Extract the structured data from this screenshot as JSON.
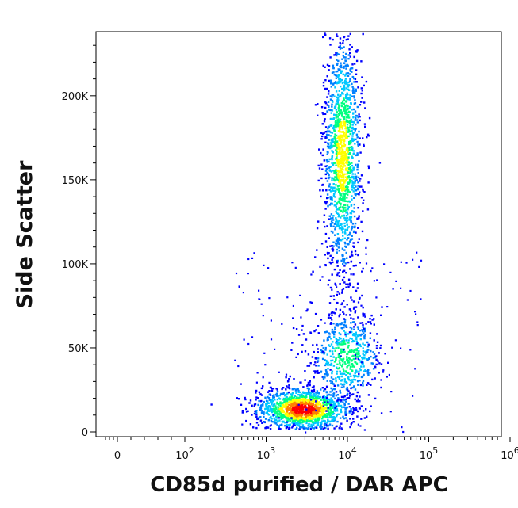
{
  "chart_data": {
    "type": "scatter",
    "plot_style": "density (pseudocolor) flow cytometry dot plot",
    "title": "",
    "xlabel": "CD85d purified / DAR APC",
    "ylabel": "Side Scatter",
    "x_scale": "biexponential (log with linear region near 0)",
    "y_scale": "linear",
    "ylim": [
      0,
      240000
    ],
    "x_ticks": [
      {
        "value": 0,
        "base": "0",
        "exp": ""
      },
      {
        "value": 100,
        "base": "10",
        "exp": "2"
      },
      {
        "value": 1000,
        "base": "10",
        "exp": "3"
      },
      {
        "value": 10000,
        "base": "10",
        "exp": "4"
      },
      {
        "value": 100000,
        "base": "10",
        "exp": "5"
      },
      {
        "value": 1000000,
        "base": "10",
        "exp": "6"
      }
    ],
    "y_ticks": [
      {
        "value": 0,
        "label": "0"
      },
      {
        "value": 50000,
        "label": "50K"
      },
      {
        "value": 100000,
        "label": "100K"
      },
      {
        "value": 150000,
        "label": "150K"
      },
      {
        "value": 200000,
        "label": "200K"
      }
    ],
    "populations": [
      {
        "name": "",
        "x_center": 2800,
        "y_center": 14000,
        "x_spread_decades": 0.28,
        "y_spread": 6000,
        "density": "highest"
      },
      {
        "name": "",
        "x_center": 8500,
        "y_center": 165000,
        "x_spread_decades": 0.12,
        "y_spread": 38000,
        "density": "high"
      },
      {
        "name": "",
        "x_center": 9500,
        "y_center": 45000,
        "x_spread_decades": 0.22,
        "y_spread": 14000,
        "density": "medium"
      }
    ],
    "color_scale": [
      "#0000ff",
      "#0080ff",
      "#00c8ff",
      "#00ff80",
      "#ffff00",
      "#ff8000",
      "#ff0000"
    ],
    "grid": false,
    "legend": "none"
  }
}
